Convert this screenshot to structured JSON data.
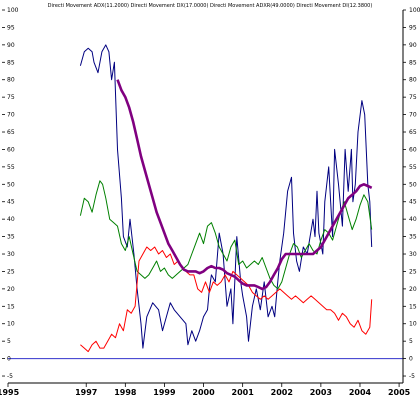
{
  "chart_data": {
    "type": "line",
    "title": "Directi Movement ADX(11.2000) Directi Movement DX(17.0000) Directi Movement ADXR(49.0000) Directi Movement DI(12.3800)",
    "xlabel": "",
    "ylabel": "",
    "x_ticks": [
      "1995",
      "1997",
      "1998",
      "1999",
      "2000",
      "2001",
      "2002",
      "2003",
      "2004",
      "2005"
    ],
    "y_ticks": [
      -5,
      0,
      5,
      10,
      15,
      20,
      25,
      30,
      35,
      40,
      45,
      50,
      55,
      60,
      65,
      70,
      75,
      80,
      85,
      90,
      95,
      100
    ],
    "xlim": [
      1995.0,
      2005.1
    ],
    "ylim": [
      -7,
      100
    ],
    "grid": false,
    "reference_line": {
      "y": 0,
      "color": "#3333cc"
    },
    "series": [
      {
        "color": "#000080",
        "points": [
          [
            1996.85,
            84
          ],
          [
            1996.95,
            88
          ],
          [
            1997.05,
            89
          ],
          [
            1997.15,
            88
          ],
          [
            1997.2,
            85
          ],
          [
            1997.3,
            82
          ],
          [
            1997.4,
            88
          ],
          [
            1997.5,
            90
          ],
          [
            1997.58,
            88
          ],
          [
            1997.65,
            80
          ],
          [
            1997.72,
            85
          ],
          [
            1997.8,
            60
          ],
          [
            1997.9,
            46
          ],
          [
            1997.95,
            35
          ],
          [
            1998.05,
            32
          ],
          [
            1998.12,
            40
          ],
          [
            1998.22,
            30
          ],
          [
            1998.3,
            20
          ],
          [
            1998.4,
            10
          ],
          [
            1998.45,
            3
          ],
          [
            1998.55,
            12
          ],
          [
            1998.7,
            16
          ],
          [
            1998.85,
            14
          ],
          [
            1998.95,
            8
          ],
          [
            1999.05,
            12
          ],
          [
            1999.15,
            16
          ],
          [
            1999.25,
            14
          ],
          [
            1999.4,
            12
          ],
          [
            1999.55,
            10
          ],
          [
            1999.6,
            4
          ],
          [
            1999.7,
            8
          ],
          [
            1999.8,
            5
          ],
          [
            1999.9,
            8
          ],
          [
            2000.0,
            12
          ],
          [
            2000.1,
            14
          ],
          [
            2000.15,
            20
          ],
          [
            2000.2,
            24
          ],
          [
            2000.3,
            22
          ],
          [
            2000.4,
            36
          ],
          [
            2000.5,
            30
          ],
          [
            2000.6,
            15
          ],
          [
            2000.7,
            20
          ],
          [
            2000.75,
            10
          ],
          [
            2000.85,
            35
          ],
          [
            2000.95,
            22
          ],
          [
            2001.0,
            18
          ],
          [
            2001.1,
            12
          ],
          [
            2001.15,
            5
          ],
          [
            2001.25,
            15
          ],
          [
            2001.35,
            20
          ],
          [
            2001.45,
            14
          ],
          [
            2001.55,
            22
          ],
          [
            2001.65,
            12
          ],
          [
            2001.75,
            15
          ],
          [
            2001.82,
            12
          ],
          [
            2001.88,
            20
          ],
          [
            2001.95,
            28
          ],
          [
            2002.05,
            36
          ],
          [
            2002.15,
            48
          ],
          [
            2002.25,
            52
          ],
          [
            2002.3,
            36
          ],
          [
            2002.38,
            28
          ],
          [
            2002.45,
            25
          ],
          [
            2002.55,
            32
          ],
          [
            2002.65,
            30
          ],
          [
            2002.8,
            40
          ],
          [
            2002.85,
            35
          ],
          [
            2002.9,
            48
          ],
          [
            2002.95,
            36
          ],
          [
            2003.05,
            30
          ],
          [
            2003.1,
            45
          ],
          [
            2003.2,
            55
          ],
          [
            2003.3,
            35
          ],
          [
            2003.35,
            60
          ],
          [
            2003.45,
            50
          ],
          [
            2003.55,
            38
          ],
          [
            2003.62,
            60
          ],
          [
            2003.7,
            48
          ],
          [
            2003.78,
            60
          ],
          [
            2003.82,
            45
          ],
          [
            2003.88,
            50
          ],
          [
            2003.95,
            65
          ],
          [
            2004.05,
            74
          ],
          [
            2004.12,
            70
          ],
          [
            2004.2,
            50
          ],
          [
            2004.25,
            45
          ],
          [
            2004.3,
            32
          ]
        ]
      },
      {
        "color": "#008000",
        "points": [
          [
            1996.85,
            41
          ],
          [
            1996.95,
            46
          ],
          [
            1997.05,
            45
          ],
          [
            1997.15,
            42
          ],
          [
            1997.25,
            47
          ],
          [
            1997.35,
            51
          ],
          [
            1997.42,
            50
          ],
          [
            1997.5,
            46
          ],
          [
            1997.6,
            40
          ],
          [
            1997.7,
            39
          ],
          [
            1997.8,
            38
          ],
          [
            1997.9,
            33
          ],
          [
            1998.0,
            31
          ],
          [
            1998.1,
            35
          ],
          [
            1998.2,
            30
          ],
          [
            1998.3,
            25
          ],
          [
            1998.4,
            24
          ],
          [
            1998.5,
            23
          ],
          [
            1998.6,
            24
          ],
          [
            1998.7,
            26
          ],
          [
            1998.8,
            28
          ],
          [
            1998.9,
            25
          ],
          [
            1999.0,
            26
          ],
          [
            1999.1,
            24
          ],
          [
            1999.2,
            23
          ],
          [
            1999.3,
            24
          ],
          [
            1999.4,
            25
          ],
          [
            1999.5,
            26
          ],
          [
            1999.6,
            27
          ],
          [
            1999.7,
            30
          ],
          [
            1999.8,
            33
          ],
          [
            1999.9,
            36
          ],
          [
            2000.0,
            33
          ],
          [
            2000.1,
            38
          ],
          [
            2000.2,
            39
          ],
          [
            2000.3,
            36
          ],
          [
            2000.4,
            32
          ],
          [
            2000.5,
            30
          ],
          [
            2000.6,
            28
          ],
          [
            2000.7,
            32
          ],
          [
            2000.8,
            34
          ],
          [
            2000.9,
            27
          ],
          [
            2001.0,
            28
          ],
          [
            2001.1,
            26
          ],
          [
            2001.2,
            27
          ],
          [
            2001.3,
            28
          ],
          [
            2001.4,
            27
          ],
          [
            2001.5,
            29
          ],
          [
            2001.6,
            26
          ],
          [
            2001.7,
            23
          ],
          [
            2001.8,
            21
          ],
          [
            2001.9,
            20
          ],
          [
            2002.0,
            22
          ],
          [
            2002.1,
            26
          ],
          [
            2002.2,
            30
          ],
          [
            2002.3,
            33
          ],
          [
            2002.4,
            32
          ],
          [
            2002.5,
            29
          ],
          [
            2002.6,
            31
          ],
          [
            2002.7,
            33
          ],
          [
            2002.8,
            31
          ],
          [
            2002.9,
            30
          ],
          [
            2003.0,
            34
          ],
          [
            2003.1,
            37
          ],
          [
            2003.2,
            36
          ],
          [
            2003.3,
            34
          ],
          [
            2003.4,
            38
          ],
          [
            2003.5,
            42
          ],
          [
            2003.6,
            45
          ],
          [
            2003.7,
            41
          ],
          [
            2003.8,
            37
          ],
          [
            2003.9,
            40
          ],
          [
            2004.0,
            44
          ],
          [
            2004.1,
            47
          ],
          [
            2004.2,
            45
          ],
          [
            2004.3,
            37
          ]
        ]
      },
      {
        "color": "#ff0000",
        "points": [
          [
            1996.85,
            4
          ],
          [
            1996.95,
            3
          ],
          [
            1997.05,
            2
          ],
          [
            1997.15,
            4
          ],
          [
            1997.25,
            5
          ],
          [
            1997.35,
            3
          ],
          [
            1997.45,
            3
          ],
          [
            1997.55,
            5
          ],
          [
            1997.65,
            7
          ],
          [
            1997.75,
            6
          ],
          [
            1997.85,
            10
          ],
          [
            1997.95,
            8
          ],
          [
            1998.05,
            14
          ],
          [
            1998.15,
            13
          ],
          [
            1998.25,
            15
          ],
          [
            1998.35,
            28
          ],
          [
            1998.45,
            30
          ],
          [
            1998.55,
            32
          ],
          [
            1998.65,
            31
          ],
          [
            1998.75,
            32
          ],
          [
            1998.85,
            30
          ],
          [
            1998.95,
            31
          ],
          [
            1999.05,
            29
          ],
          [
            1999.15,
            30
          ],
          [
            1999.25,
            27
          ],
          [
            1999.35,
            28
          ],
          [
            1999.45,
            26
          ],
          [
            1999.55,
            25
          ],
          [
            1999.65,
            24
          ],
          [
            1999.75,
            24
          ],
          [
            1999.85,
            20
          ],
          [
            1999.95,
            19
          ],
          [
            2000.05,
            22
          ],
          [
            2000.15,
            19
          ],
          [
            2000.25,
            22
          ],
          [
            2000.35,
            21
          ],
          [
            2000.45,
            22
          ],
          [
            2000.55,
            24
          ],
          [
            2000.65,
            22
          ],
          [
            2000.75,
            25
          ],
          [
            2000.85,
            24
          ],
          [
            2000.95,
            23
          ],
          [
            2001.05,
            22
          ],
          [
            2001.15,
            21
          ],
          [
            2001.25,
            19
          ],
          [
            2001.35,
            18
          ],
          [
            2001.45,
            17
          ],
          [
            2001.55,
            18
          ],
          [
            2001.65,
            17
          ],
          [
            2001.75,
            18
          ],
          [
            2001.85,
            19
          ],
          [
            2001.95,
            20
          ],
          [
            2002.05,
            19
          ],
          [
            2002.15,
            18
          ],
          [
            2002.25,
            17
          ],
          [
            2002.35,
            18
          ],
          [
            2002.45,
            17
          ],
          [
            2002.55,
            16
          ],
          [
            2002.65,
            17
          ],
          [
            2002.75,
            18
          ],
          [
            2002.85,
            17
          ],
          [
            2002.95,
            16
          ],
          [
            2003.05,
            15
          ],
          [
            2003.15,
            14
          ],
          [
            2003.25,
            14
          ],
          [
            2003.35,
            13
          ],
          [
            2003.45,
            11
          ],
          [
            2003.55,
            13
          ],
          [
            2003.65,
            12
          ],
          [
            2003.75,
            10
          ],
          [
            2003.85,
            9
          ],
          [
            2003.95,
            11
          ],
          [
            2004.05,
            8
          ],
          [
            2004.15,
            7
          ],
          [
            2004.25,
            9
          ],
          [
            2004.3,
            17
          ]
        ]
      },
      {
        "color": "#800080",
        "points": [
          [
            1997.8,
            80
          ],
          [
            1997.9,
            77
          ],
          [
            1998.0,
            75
          ],
          [
            1998.1,
            72
          ],
          [
            1998.2,
            68
          ],
          [
            1998.3,
            63
          ],
          [
            1998.4,
            58
          ],
          [
            1998.5,
            54
          ],
          [
            1998.6,
            50
          ],
          [
            1998.7,
            46
          ],
          [
            1998.8,
            42
          ],
          [
            1998.9,
            39
          ],
          [
            1999.0,
            36
          ],
          [
            1999.1,
            33
          ],
          [
            1999.2,
            31
          ],
          [
            1999.3,
            29
          ],
          [
            1999.4,
            27
          ],
          [
            1999.5,
            25.5
          ],
          [
            1999.6,
            25
          ],
          [
            1999.7,
            25
          ],
          [
            1999.8,
            25
          ],
          [
            1999.9,
            24.5
          ],
          [
            2000.0,
            25
          ],
          [
            2000.1,
            26
          ],
          [
            2000.2,
            26.5
          ],
          [
            2000.3,
            26
          ],
          [
            2000.4,
            26
          ],
          [
            2000.5,
            25.5
          ],
          [
            2000.6,
            24.5
          ],
          [
            2000.7,
            24
          ],
          [
            2000.8,
            23.5
          ],
          [
            2000.9,
            22.5
          ],
          [
            2001.0,
            21.5
          ],
          [
            2001.1,
            21
          ],
          [
            2001.2,
            21
          ],
          [
            2001.3,
            21
          ],
          [
            2001.4,
            20.5
          ],
          [
            2001.5,
            20
          ],
          [
            2001.6,
            20.5
          ],
          [
            2001.7,
            22
          ],
          [
            2001.8,
            24
          ],
          [
            2001.9,
            26
          ],
          [
            2002.0,
            28.5
          ],
          [
            2002.1,
            30
          ],
          [
            2002.2,
            30
          ],
          [
            2002.3,
            30
          ],
          [
            2002.4,
            30
          ],
          [
            2002.5,
            30
          ],
          [
            2002.6,
            30
          ],
          [
            2002.7,
            30
          ],
          [
            2002.8,
            30
          ],
          [
            2002.9,
            31
          ],
          [
            2003.0,
            32
          ],
          [
            2003.1,
            34
          ],
          [
            2003.2,
            36
          ],
          [
            2003.3,
            38
          ],
          [
            2003.4,
            40
          ],
          [
            2003.5,
            42
          ],
          [
            2003.6,
            44
          ],
          [
            2003.7,
            46
          ],
          [
            2003.8,
            47
          ],
          [
            2003.9,
            48
          ],
          [
            2004.0,
            49.5
          ],
          [
            2004.1,
            50
          ],
          [
            2004.2,
            49.5
          ],
          [
            2004.3,
            49
          ]
        ]
      }
    ]
  }
}
